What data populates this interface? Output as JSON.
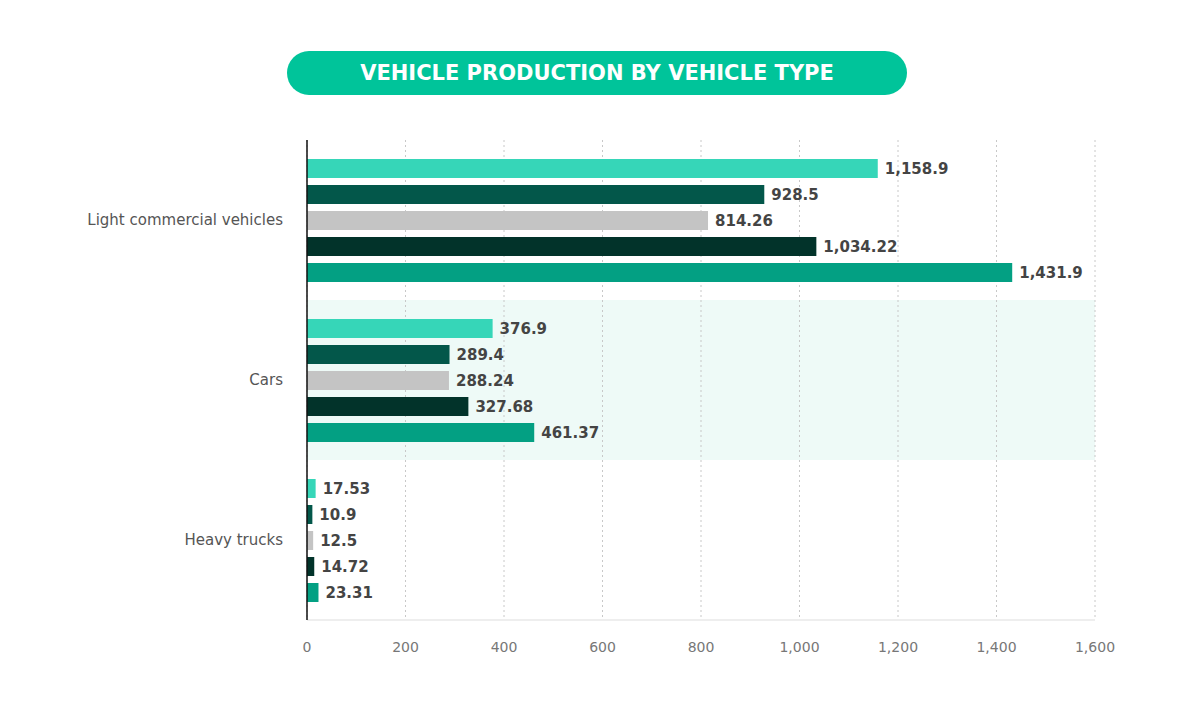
{
  "chart_data": {
    "type": "bar",
    "title": "VEHICLE PRODUCTION BY VEHICLE TYPE",
    "orientation": "horizontal",
    "categories": [
      "Light commercial vehicles",
      "Cars",
      "Heavy trucks"
    ],
    "series": [
      {
        "color": "#36d6b8",
        "values": [
          1158.9,
          376.9,
          17.53
        ],
        "value_labels": [
          "1,158.9",
          "376.9",
          "17.53"
        ]
      },
      {
        "color": "#03574a",
        "values": [
          928.5,
          289.4,
          10.9
        ],
        "value_labels": [
          "928.5",
          "289.4",
          "10.9"
        ]
      },
      {
        "color": "#c4c4c4",
        "values": [
          814.26,
          288.24,
          12.5
        ],
        "value_labels": [
          "814.26",
          "288.24",
          "12.5"
        ]
      },
      {
        "color": "#02332a",
        "values": [
          1034.22,
          327.68,
          14.72
        ],
        "value_labels": [
          "1,034.22",
          "327.68",
          "14.72"
        ]
      },
      {
        "color": "#03a083",
        "values": [
          1431.9,
          461.37,
          23.31
        ],
        "value_labels": [
          "1,431.9",
          "461.37",
          "23.31"
        ]
      }
    ],
    "xlim": [
      0,
      1600
    ],
    "xticks": [
      0,
      200,
      400,
      600,
      800,
      {
        "value": 1000,
        "label": "1,000"
      },
      {
        "value": 1200,
        "label": "1,200"
      },
      {
        "value": 1400,
        "label": "1,400"
      },
      {
        "value": 1600,
        "label": "1,600"
      }
    ],
    "grid": true,
    "data_labels": true
  }
}
